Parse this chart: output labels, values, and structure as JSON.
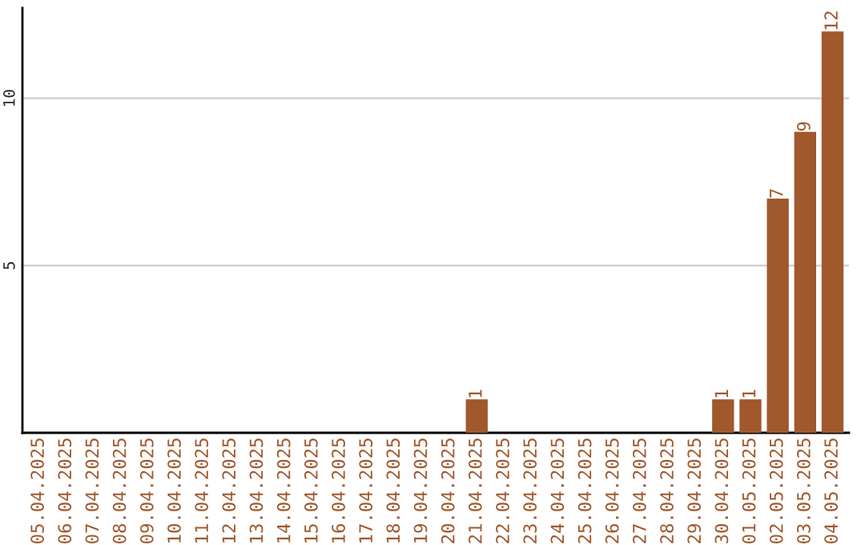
{
  "chart_data": {
    "type": "bar",
    "categories": [
      "05.04.2025",
      "06.04.2025",
      "07.04.2025",
      "08.04.2025",
      "09.04.2025",
      "10.04.2025",
      "11.04.2025",
      "12.04.2025",
      "13.04.2025",
      "14.04.2025",
      "15.04.2025",
      "16.04.2025",
      "17.04.2025",
      "18.04.2025",
      "19.04.2025",
      "20.04.2025",
      "21.04.2025",
      "22.04.2025",
      "23.04.2025",
      "24.04.2025",
      "25.04.2025",
      "26.04.2025",
      "27.04.2025",
      "28.04.2025",
      "29.04.2025",
      "30.04.2025",
      "01.05.2025",
      "02.05.2025",
      "03.05.2025",
      "04.05.2025"
    ],
    "values": [
      0,
      0,
      0,
      0,
      0,
      0,
      0,
      0,
      0,
      0,
      0,
      0,
      0,
      0,
      0,
      0,
      1,
      0,
      0,
      0,
      0,
      0,
      0,
      0,
      0,
      1,
      1,
      7,
      9,
      12
    ],
    "value_labels": [
      null,
      null,
      null,
      null,
      null,
      null,
      null,
      null,
      null,
      null,
      null,
      null,
      null,
      null,
      null,
      null,
      "1",
      null,
      null,
      null,
      null,
      null,
      null,
      null,
      null,
      "1",
      "1",
      "7",
      "9",
      "12"
    ],
    "color": "#a0582c",
    "ylim": [
      0,
      12.7
    ],
    "yticks": [
      5,
      10
    ],
    "grid": "y"
  }
}
